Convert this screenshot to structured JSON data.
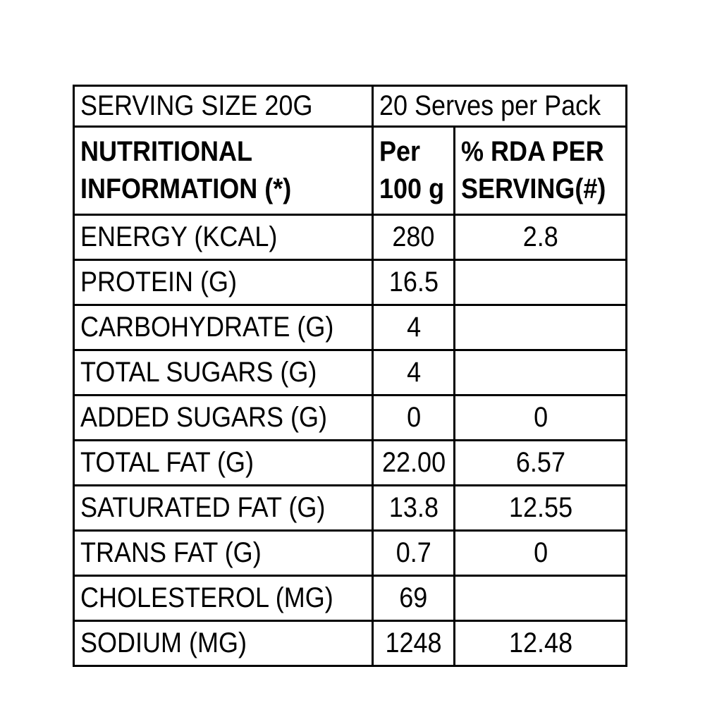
{
  "table": {
    "serving_row": {
      "label": "SERVING SIZE 20G",
      "value": "20 Serves per Pack"
    },
    "header": {
      "col1_line1": "NUTRITIONAL",
      "col1_line2": "INFORMATION (*)",
      "col2_line1": "Per",
      "col2_line2": "100 g",
      "col3_line1": "% RDA PER",
      "col3_line2": "SERVING(#)"
    },
    "rows": [
      {
        "label": "ENERGY (KCAL)",
        "per100": "280",
        "rda": "2.8"
      },
      {
        "label": "PROTEIN (G)",
        "per100": "16.5",
        "rda": ""
      },
      {
        "label": "CARBOHYDRATE (G)",
        "per100": "4",
        "rda": ""
      },
      {
        "label": "TOTAL SUGARS (G)",
        "per100": "4",
        "rda": ""
      },
      {
        "label": "ADDED SUGARS (G)",
        "per100": "0",
        "rda": "0"
      },
      {
        "label": "TOTAL FAT (G)",
        "per100": "22.00",
        "rda": "6.57"
      },
      {
        "label": "SATURATED FAT (G)",
        "per100": "13.8",
        "rda": "12.55"
      },
      {
        "label": "TRANS FAT (G)",
        "per100": "0.7",
        "rda": "0"
      },
      {
        "label": "CHOLESTEROL (MG)",
        "per100": "69",
        "rda": ""
      },
      {
        "label": "SODIUM (MG)",
        "per100": "1248",
        "rda": "12.48"
      }
    ],
    "colors": {
      "border": "#000000",
      "text": "#000000",
      "background": "#ffffff"
    }
  }
}
